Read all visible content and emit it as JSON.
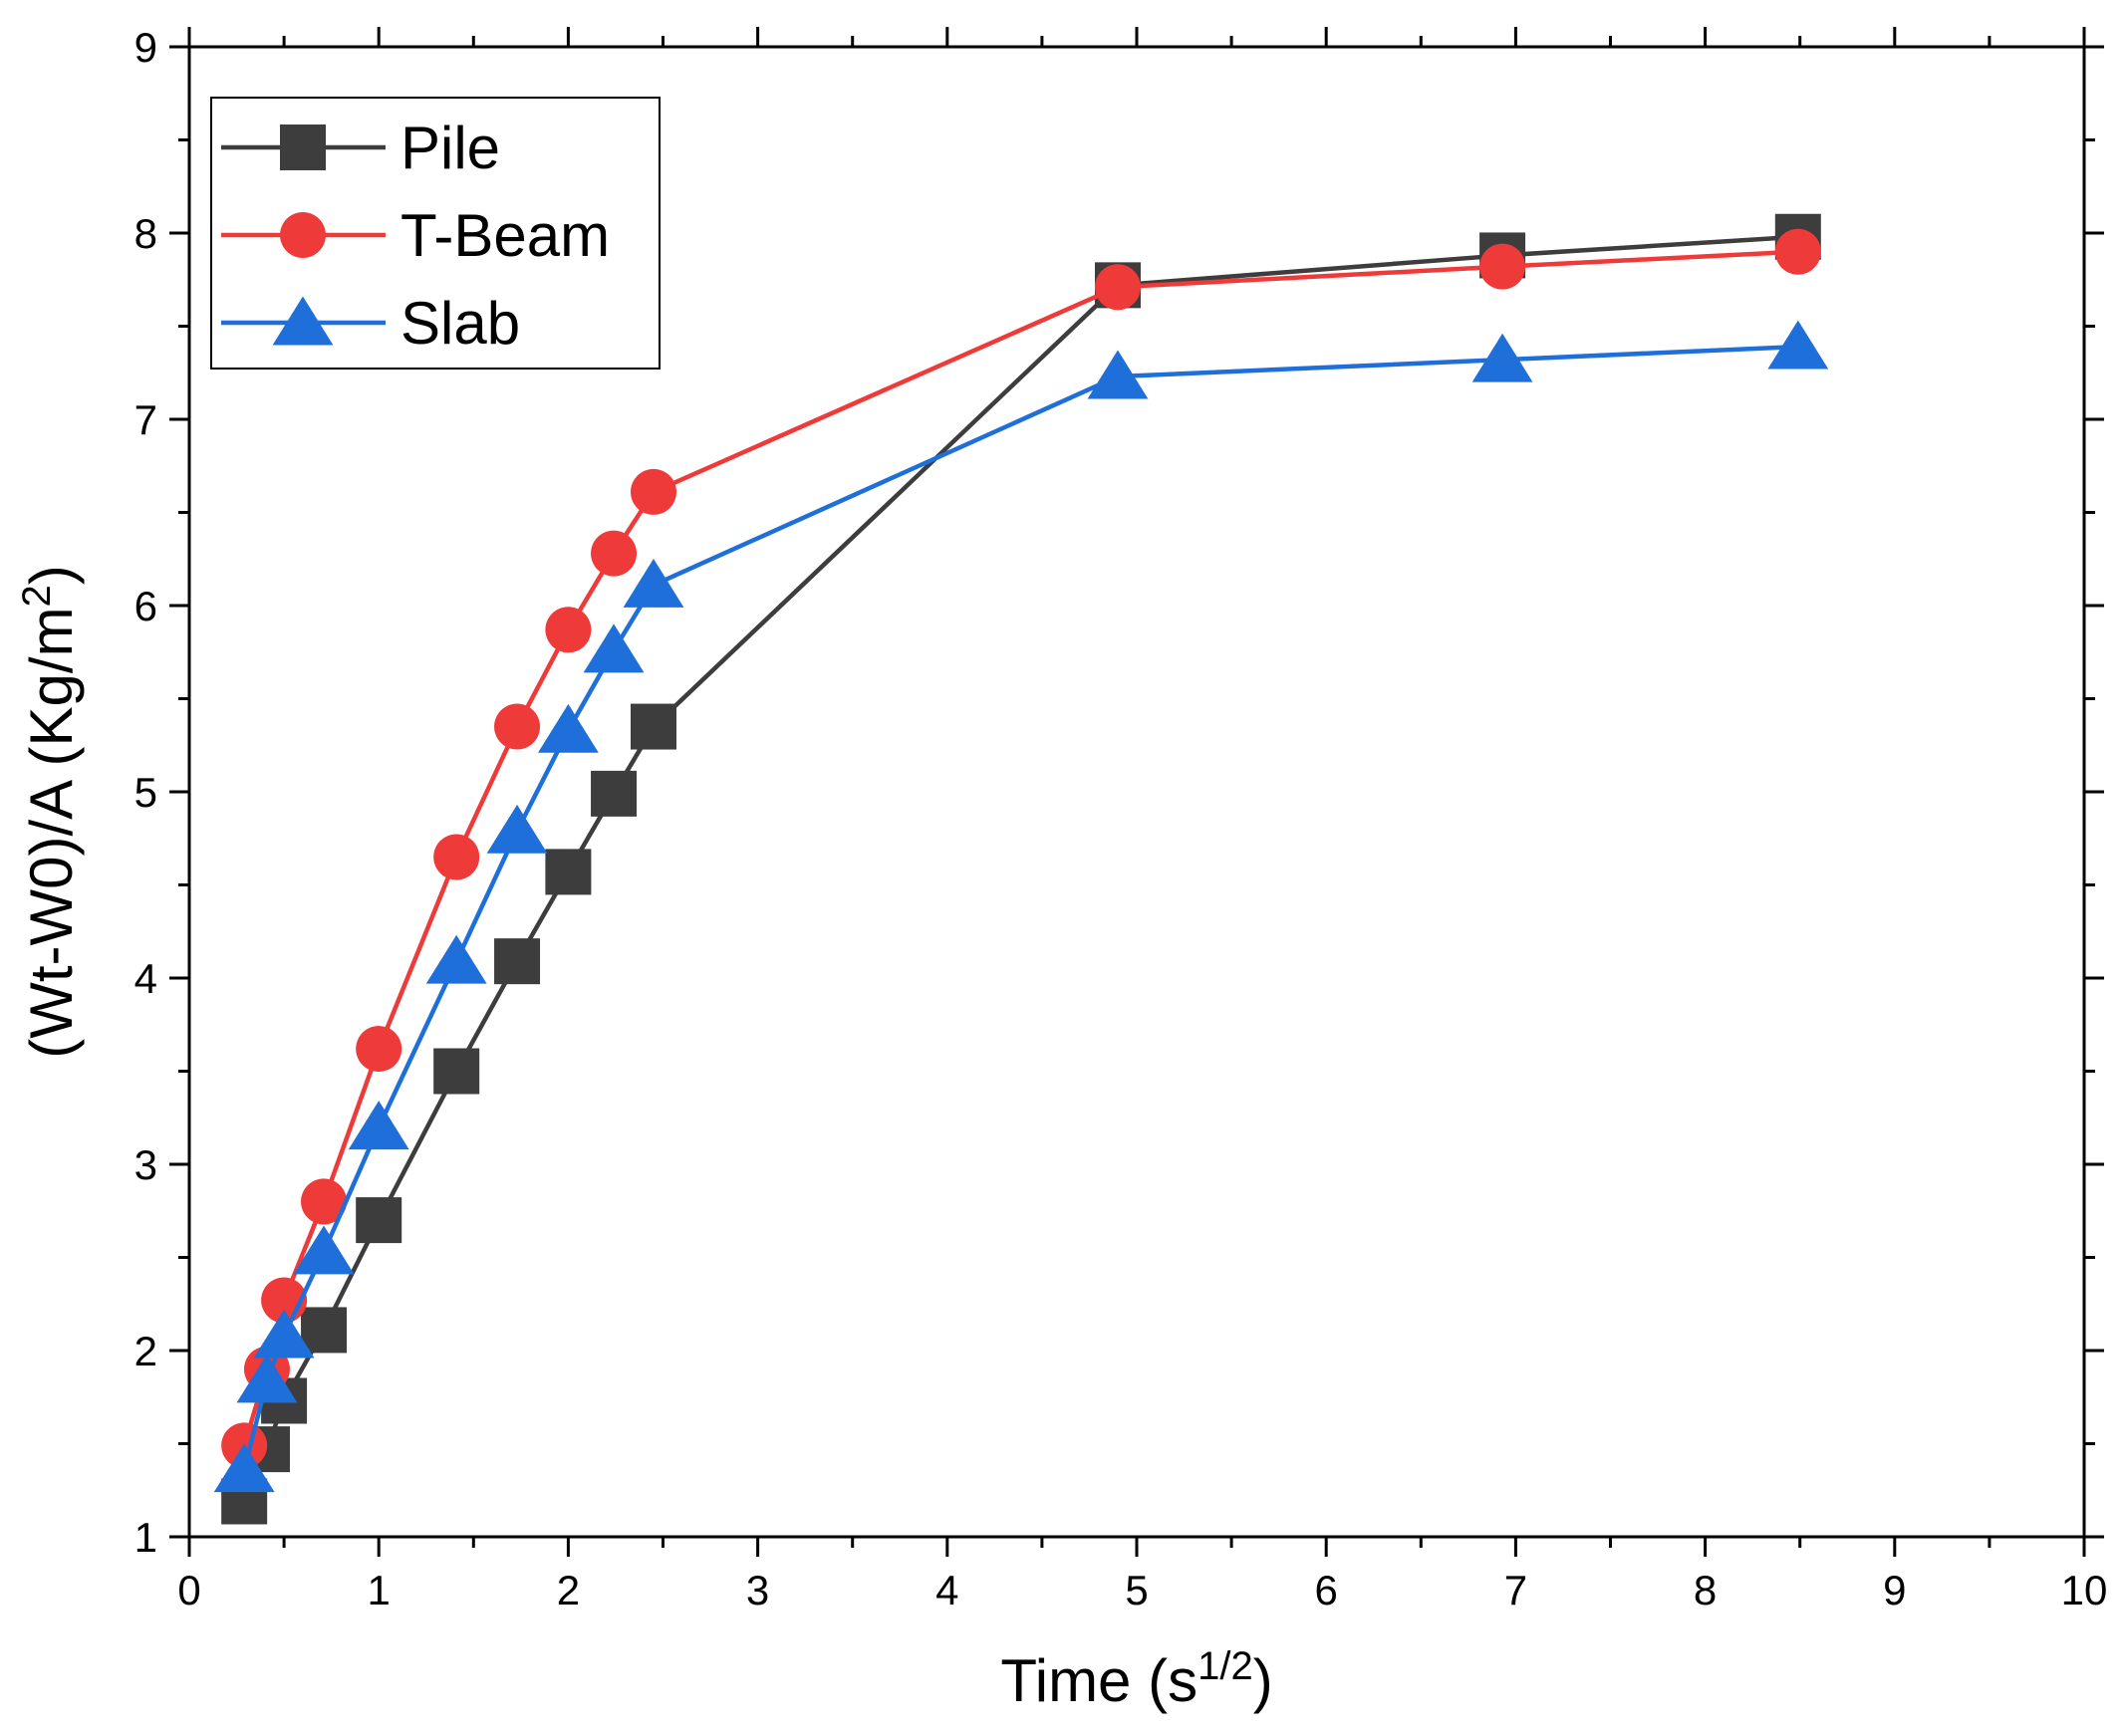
{
  "chart_data": {
    "type": "line",
    "title": "",
    "xlabel": "Time (s",
    "xlabel_sup": "1/2",
    "xlabel_suffix": ")",
    "ylabel": "(Wt-W0)/A  (Kg/m",
    "ylabel_sup": "2",
    "ylabel_suffix": ")",
    "xlim": [
      0,
      10
    ],
    "ylim": [
      1,
      9
    ],
    "xticks": [
      0,
      1,
      2,
      3,
      4,
      5,
      6,
      7,
      8,
      9,
      10
    ],
    "yticks": [
      1,
      2,
      3,
      4,
      5,
      6,
      7,
      8,
      9
    ],
    "xtick_labels": [
      "0",
      "1",
      "2",
      "3",
      "4",
      "5",
      "6",
      "7",
      "8",
      "9",
      "10"
    ],
    "ytick_labels": [
      "1",
      "2",
      "3",
      "4",
      "5",
      "6",
      "7",
      "8",
      "9"
    ],
    "legend_position": "top-left",
    "series": [
      {
        "name": "Pile",
        "color": "#3d3d3d",
        "marker": "square",
        "x": [
          0.29,
          0.41,
          0.5,
          0.71,
          1.0,
          1.41,
          1.73,
          2.0,
          2.24,
          2.45,
          4.9,
          6.93,
          8.49
        ],
        "y": [
          1.19,
          1.47,
          1.73,
          2.11,
          2.7,
          3.5,
          4.09,
          4.57,
          4.99,
          5.35,
          7.72,
          7.88,
          7.98
        ]
      },
      {
        "name": "T-Beam",
        "color": "#ef3a3a",
        "marker": "circle",
        "x": [
          0.29,
          0.41,
          0.5,
          0.71,
          1.0,
          1.41,
          1.73,
          2.0,
          2.24,
          2.45,
          4.9,
          6.93,
          8.49
        ],
        "y": [
          1.49,
          1.9,
          2.27,
          2.8,
          3.62,
          4.65,
          5.35,
          5.87,
          6.28,
          6.61,
          7.71,
          7.82,
          7.9
        ]
      },
      {
        "name": "Slab",
        "color": "#1f6fdb",
        "marker": "triangle",
        "x": [
          0.29,
          0.41,
          0.5,
          0.71,
          1.0,
          1.41,
          1.73,
          2.0,
          2.24,
          2.45,
          4.9,
          6.93,
          8.49
        ],
        "y": [
          1.36,
          1.84,
          2.08,
          2.53,
          3.2,
          4.09,
          4.79,
          5.33,
          5.76,
          6.11,
          7.23,
          7.32,
          7.39
        ]
      }
    ]
  }
}
